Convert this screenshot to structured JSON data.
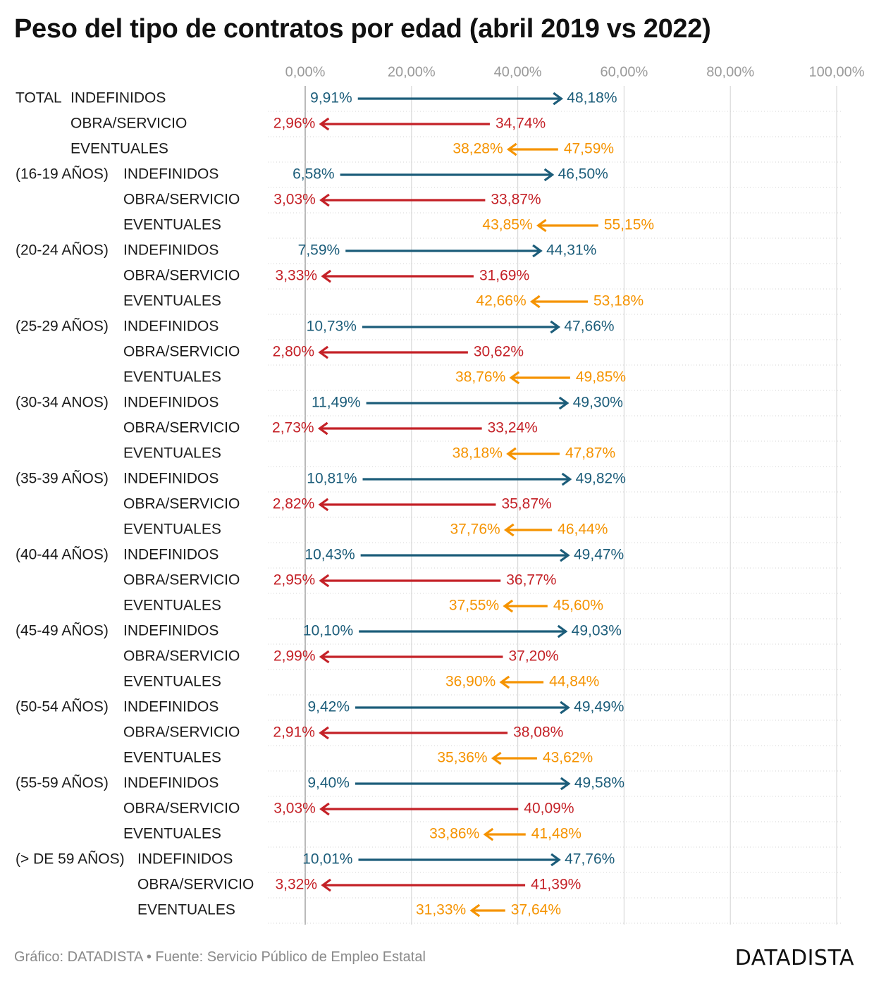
{
  "title": "Peso del tipo de contratos por edad (abril 2019 vs 2022)",
  "footer": "Gráfico: DATADISTA • Fuente: Servicio Público de Empleo Estatal",
  "brand": "DATADISTA",
  "colors": {
    "INDEFINIDOS": "#1c5d7a",
    "OBRA/SERVICIO": "#c42127",
    "EVENTUALES": "#f59300",
    "grid": "#d9d9d9",
    "tick": "#9a9a9a"
  },
  "chart_data": {
    "type": "arrow",
    "title": "Peso del tipo de contratos por edad (abril 2019 vs 2022)",
    "xlim": [
      0,
      100
    ],
    "ticks": [
      "0,00%",
      "20,00%",
      "40,00%",
      "60,00%",
      "80,00%",
      "100,00%"
    ],
    "tick_values": [
      0,
      20,
      40,
      60,
      80,
      100
    ],
    "series_names": [
      "2019",
      "2022"
    ],
    "rows": [
      {
        "group": "TOTAL",
        "type": "INDEFINIDOS",
        "v2019": 9.91,
        "v2022": 48.18,
        "l2019": "9,91%",
        "l2022": "48,18%"
      },
      {
        "group": "",
        "type": "OBRA/SERVICIO",
        "v2019": 34.74,
        "v2022": 2.96,
        "l2019": "34,74%",
        "l2022": "2,96%"
      },
      {
        "group": "",
        "type": "EVENTUALES",
        "v2019": 47.59,
        "v2022": 38.28,
        "l2019": "47,59%",
        "l2022": "38,28%"
      },
      {
        "group": "(16-19 AÑOS)",
        "type": "INDEFINIDOS",
        "v2019": 6.58,
        "v2022": 46.5,
        "l2019": "6,58%",
        "l2022": "46,50%"
      },
      {
        "group": "",
        "type": "OBRA/SERVICIO",
        "v2019": 33.87,
        "v2022": 3.03,
        "l2019": "33,87%",
        "l2022": "3,03%"
      },
      {
        "group": "",
        "type": "EVENTUALES",
        "v2019": 55.15,
        "v2022": 43.85,
        "l2019": "55,15%",
        "l2022": "43,85%"
      },
      {
        "group": "(20-24 AÑOS)",
        "type": "INDEFINIDOS",
        "v2019": 7.59,
        "v2022": 44.31,
        "l2019": "7,59%",
        "l2022": "44,31%"
      },
      {
        "group": "",
        "type": "OBRA/SERVICIO",
        "v2019": 31.69,
        "v2022": 3.33,
        "l2019": "31,69%",
        "l2022": "3,33%"
      },
      {
        "group": "",
        "type": "EVENTUALES",
        "v2019": 53.18,
        "v2022": 42.66,
        "l2019": "53,18%",
        "l2022": "42,66%"
      },
      {
        "group": "(25-29 AÑOS)",
        "type": "INDEFINIDOS",
        "v2019": 10.73,
        "v2022": 47.66,
        "l2019": "10,73%",
        "l2022": "47,66%"
      },
      {
        "group": "",
        "type": "OBRA/SERVICIO",
        "v2019": 30.62,
        "v2022": 2.8,
        "l2019": "30,62%",
        "l2022": "2,80%"
      },
      {
        "group": "",
        "type": "EVENTUALES",
        "v2019": 49.85,
        "v2022": 38.76,
        "l2019": "49,85%",
        "l2022": "38,76%"
      },
      {
        "group": "(30-34 ANOS)",
        "type": "INDEFINIDOS",
        "v2019": 11.49,
        "v2022": 49.3,
        "l2019": "11,49%",
        "l2022": "49,30%"
      },
      {
        "group": "",
        "type": "OBRA/SERVICIO",
        "v2019": 33.24,
        "v2022": 2.73,
        "l2019": "33,24%",
        "l2022": "2,73%"
      },
      {
        "group": "",
        "type": "EVENTUALES",
        "v2019": 47.87,
        "v2022": 38.18,
        "l2019": "47,87%",
        "l2022": "38,18%"
      },
      {
        "group": "(35-39 AÑOS)",
        "type": "INDEFINIDOS",
        "v2019": 10.81,
        "v2022": 49.82,
        "l2019": "10,81%",
        "l2022": "49,82%"
      },
      {
        "group": "",
        "type": "OBRA/SERVICIO",
        "v2019": 35.87,
        "v2022": 2.82,
        "l2019": "35,87%",
        "l2022": "2,82%"
      },
      {
        "group": "",
        "type": "EVENTUALES",
        "v2019": 46.44,
        "v2022": 37.76,
        "l2019": "46,44%",
        "l2022": "37,76%"
      },
      {
        "group": "(40-44 AÑOS)",
        "type": "INDEFINIDOS",
        "v2019": 10.43,
        "v2022": 49.47,
        "l2019": "10,43%",
        "l2022": "49,47%"
      },
      {
        "group": "",
        "type": "OBRA/SERVICIO",
        "v2019": 36.77,
        "v2022": 2.95,
        "l2019": "36,77%",
        "l2022": "2,95%"
      },
      {
        "group": "",
        "type": "EVENTUALES",
        "v2019": 45.6,
        "v2022": 37.55,
        "l2019": "45,60%",
        "l2022": "37,55%"
      },
      {
        "group": "(45-49 AÑOS)",
        "type": "INDEFINIDOS",
        "v2019": 10.1,
        "v2022": 49.03,
        "l2019": "10,10%",
        "l2022": "49,03%"
      },
      {
        "group": "",
        "type": "OBRA/SERVICIO",
        "v2019": 37.2,
        "v2022": 2.99,
        "l2019": "37,20%",
        "l2022": "2,99%"
      },
      {
        "group": "",
        "type": "EVENTUALES",
        "v2019": 44.84,
        "v2022": 36.9,
        "l2019": "44,84%",
        "l2022": "36,90%"
      },
      {
        "group": "(50-54 AÑOS)",
        "type": "INDEFINIDOS",
        "v2019": 9.42,
        "v2022": 49.49,
        "l2019": "9,42%",
        "l2022": "49,49%"
      },
      {
        "group": "",
        "type": "OBRA/SERVICIO",
        "v2019": 38.08,
        "v2022": 2.91,
        "l2019": "38,08%",
        "l2022": "2,91%"
      },
      {
        "group": "",
        "type": "EVENTUALES",
        "v2019": 43.62,
        "v2022": 35.36,
        "l2019": "43,62%",
        "l2022": "35,36%"
      },
      {
        "group": "(55-59 AÑOS)",
        "type": "INDEFINIDOS",
        "v2019": 9.4,
        "v2022": 49.58,
        "l2019": "9,40%",
        "l2022": "49,58%"
      },
      {
        "group": "",
        "type": "OBRA/SERVICIO",
        "v2019": 40.09,
        "v2022": 3.03,
        "l2019": "40,09%",
        "l2022": "3,03%"
      },
      {
        "group": "",
        "type": "EVENTUALES",
        "v2019": 41.48,
        "v2022": 33.86,
        "l2019": "41,48%",
        "l2022": "33,86%"
      },
      {
        "group": "(> DE 59 AÑOS)",
        "type": "INDEFINIDOS",
        "v2019": 10.01,
        "v2022": 47.76,
        "l2019": "10,01%",
        "l2022": "47,76%"
      },
      {
        "group": "",
        "type": "OBRA/SERVICIO",
        "v2019": 41.39,
        "v2022": 3.32,
        "l2019": "41,39%",
        "l2022": "3,32%"
      },
      {
        "group": "",
        "type": "EVENTUALES",
        "v2019": 37.64,
        "v2022": 31.33,
        "l2019": "37,64%",
        "l2022": "31,33%"
      }
    ]
  }
}
